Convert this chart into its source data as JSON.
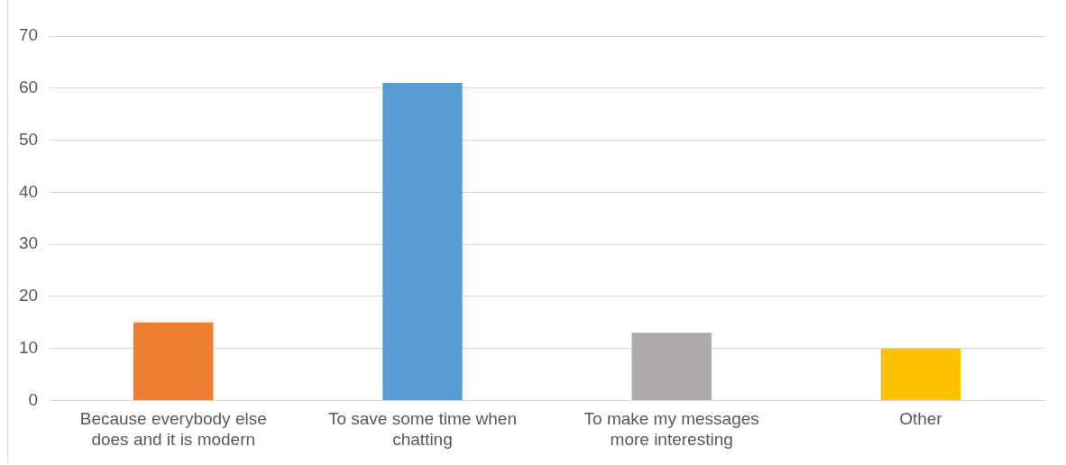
{
  "chart_data": {
    "type": "bar",
    "categories": [
      "Because everybody else does and it is modern",
      "To save some time when chatting",
      "To make my messages more interesting",
      "Other"
    ],
    "values": [
      15,
      61,
      13,
      10
    ],
    "colors": [
      "#ed7d31",
      "#5b9bd5",
      "#aeaaaa",
      "#ffc000"
    ],
    "ylim": [
      0,
      70
    ],
    "yticks": [
      0,
      10,
      20,
      30,
      40,
      50,
      60,
      70
    ],
    "grid": "y",
    "legend": false
  }
}
